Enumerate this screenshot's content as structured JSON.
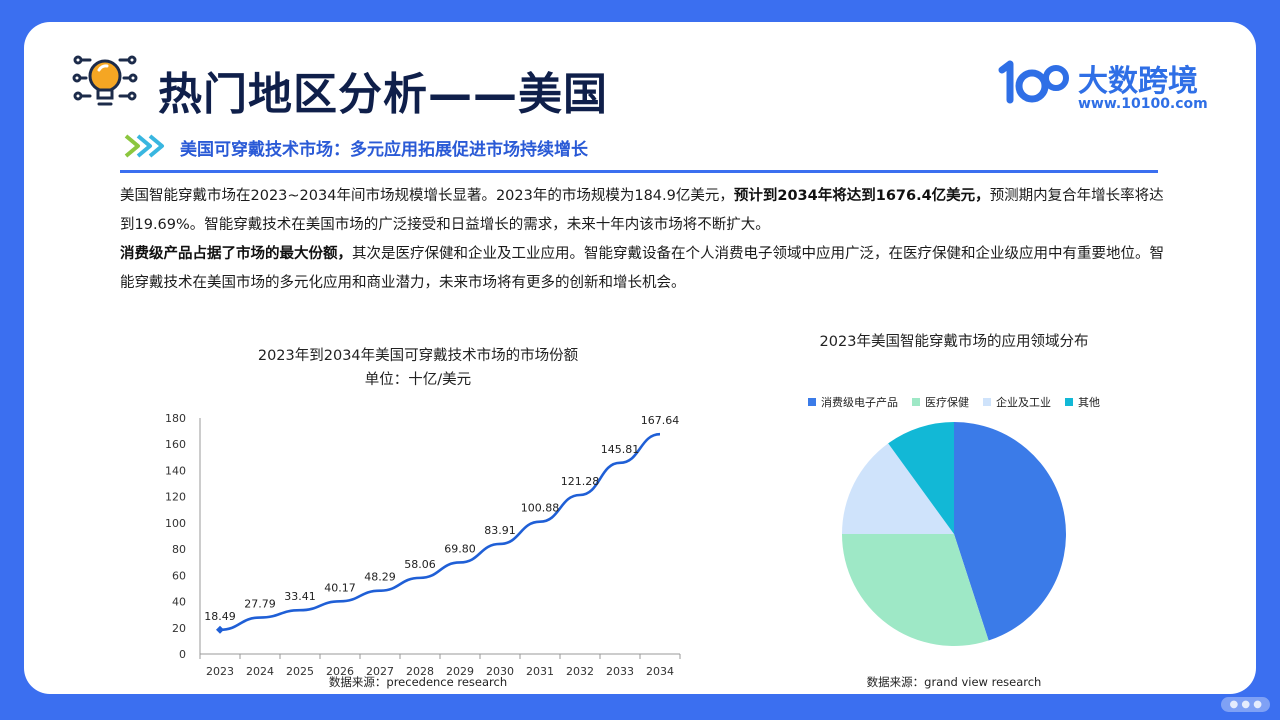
{
  "header": {
    "title": "热门地区分析——美国",
    "logo_name": "大数跨境",
    "logo_url": "www.10100.com"
  },
  "section": {
    "subtitle": "美国可穿戴技术市场：多元应用拓展促进市场持续增长"
  },
  "paragraphs": {
    "p1_a": "美国智能穿戴市场在2023~2034年间市场规模增长显著。2023年的市场规模为184.9亿美元，",
    "p1_b": "预计到2034年将达到1676.4亿美元，",
    "p1_c": "预测期内复合年增长率将达到19.69%。智能穿戴技术在美国市场的广泛接受和日益增长的需求，未来十年内该市场将不断扩大。",
    "p2_a": "消费级产品占据了市场的最大份额，",
    "p2_b": "其次是医疗保健和企业及工业应用。智能穿戴设备在个人消费电子领域中应用广泛，在医疗保健和企业级应用中有重要地位。智能穿戴技术在美国市场的多元化应用和商业潜力，未来市场将有更多的创新和增长机会。"
  },
  "chart_data": [
    {
      "type": "line",
      "title": "2023年到2034年美国可穿戴技术市场的市场份额",
      "subtitle": "单位：十亿/美元",
      "x": [
        "2023",
        "2024",
        "2025",
        "2026",
        "2027",
        "2028",
        "2029",
        "2030",
        "2031",
        "2032",
        "2033",
        "2034"
      ],
      "series": [
        {
          "values": [
            18.49,
            27.79,
            33.41,
            40.17,
            48.29,
            58.06,
            69.8,
            83.91,
            100.88,
            121.28,
            145.81,
            167.64
          ]
        }
      ],
      "data_labels": [
        "18.49",
        "27.79",
        "33.41",
        "40.17",
        "48.29",
        "58.06",
        "69.80",
        "83.91",
        "100.88",
        "121.28",
        "145.81",
        "167.64"
      ],
      "yticks": [
        0,
        20,
        40,
        60,
        80,
        100,
        120,
        140,
        160,
        180
      ],
      "ylim": [
        0,
        180
      ],
      "grid": false,
      "color": "#1f5fd6",
      "source": "数据来源：precedence research"
    },
    {
      "type": "pie",
      "title": "2023年美国智能穿戴市场的应用领域分布",
      "labels": [
        "消费级电子产品",
        "医疗保健",
        "企业及工业",
        "其他"
      ],
      "values": [
        45,
        30,
        15,
        10
      ],
      "colors": [
        "#3b7be8",
        "#9ee8c6",
        "#cfe3fb",
        "#12b8d6"
      ],
      "legend": "top",
      "source": "数据来源：grand view research"
    }
  ],
  "colors": {
    "background": "#3b6ff0",
    "title": "#0f1f4a",
    "accent": "#2f6fe6"
  },
  "icons": {
    "bulb": "lightbulb-icon",
    "chevrons": "double-chevron-icon",
    "logo_mark": "brand-logo-icon"
  }
}
